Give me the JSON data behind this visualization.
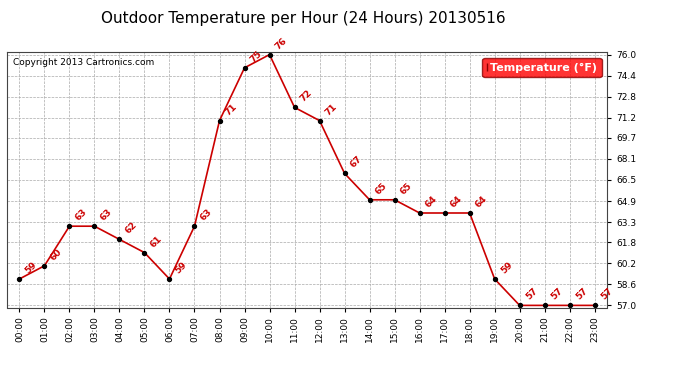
{
  "title": "Outdoor Temperature per Hour (24 Hours) 20130516",
  "copyright_text": "Copyright 2013 Cartronics.com",
  "legend_label": "Temperature (°F)",
  "hours": [
    "00:00",
    "01:00",
    "02:00",
    "03:00",
    "04:00",
    "05:00",
    "06:00",
    "07:00",
    "08:00",
    "09:00",
    "10:00",
    "11:00",
    "12:00",
    "13:00",
    "14:00",
    "15:00",
    "16:00",
    "17:00",
    "18:00",
    "19:00",
    "20:00",
    "21:00",
    "22:00",
    "23:00"
  ],
  "temps": [
    59,
    60,
    63,
    63,
    62,
    61,
    59,
    63,
    71,
    75,
    76,
    72,
    71,
    67,
    65,
    65,
    64,
    64,
    64,
    59,
    57,
    57,
    57,
    57
  ],
  "line_color": "#cc0000",
  "marker_color": "#000000",
  "label_color": "#cc0000",
  "background_color": "#ffffff",
  "grid_color": "#aaaaaa",
  "ylim_min": 56.84,
  "ylim_max": 76.16,
  "yticks": [
    57.0,
    58.6,
    60.2,
    61.8,
    63.3,
    64.9,
    66.5,
    68.1,
    69.7,
    71.2,
    72.8,
    74.4,
    76.0
  ],
  "title_fontsize": 11,
  "label_fontsize": 6.5,
  "tick_fontsize": 6.5,
  "copyright_fontsize": 6.5,
  "legend_fontsize": 8
}
